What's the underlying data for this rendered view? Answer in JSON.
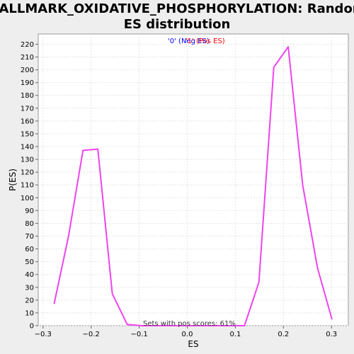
{
  "chart_data": {
    "type": "line",
    "title_line1": "HALLMARK_OXIDATIVE_PHOSPHORYLATION: Random",
    "title_line2": "ES distribution",
    "xlabel": "ES",
    "ylabel": "P(ES)",
    "xlim": [
      -0.31,
      0.335
    ],
    "ylim": [
      0,
      228
    ],
    "xticks": [
      -0.3,
      -0.2,
      -0.1,
      0.0,
      0.1,
      0.2,
      0.3
    ],
    "xtick_labels": [
      "−0.3",
      "−0.2",
      "−0.1",
      "0.0",
      "0.1",
      "0.2",
      "0.3"
    ],
    "yticks": [
      0,
      10,
      20,
      30,
      40,
      50,
      60,
      70,
      80,
      90,
      100,
      110,
      120,
      130,
      140,
      150,
      160,
      170,
      180,
      190,
      200,
      210,
      220
    ],
    "grid": true,
    "legend_position": "top-center",
    "legend": {
      "neg_label": "'0' (Neg ES)",
      "pos_label": "'1' (Pos ES)",
      "neg_color": "#0000ff",
      "pos_color": "#ff0000"
    },
    "annotation": "Sets with pos scores: 61%",
    "series": [
      {
        "color": "#ee44ee",
        "x": [
          -0.277,
          -0.247,
          -0.217,
          -0.186,
          -0.156,
          -0.125,
          -0.095,
          -0.064,
          -0.034,
          -0.003,
          0.027,
          0.058,
          0.088,
          0.119,
          0.149,
          0.18,
          0.21,
          0.24,
          0.271,
          0.301
        ],
        "y": [
          17,
          70,
          137,
          138,
          25,
          1,
          0,
          0,
          0,
          0,
          0,
          0,
          0,
          0,
          34,
          202,
          218,
          110,
          45,
          5
        ]
      }
    ]
  }
}
